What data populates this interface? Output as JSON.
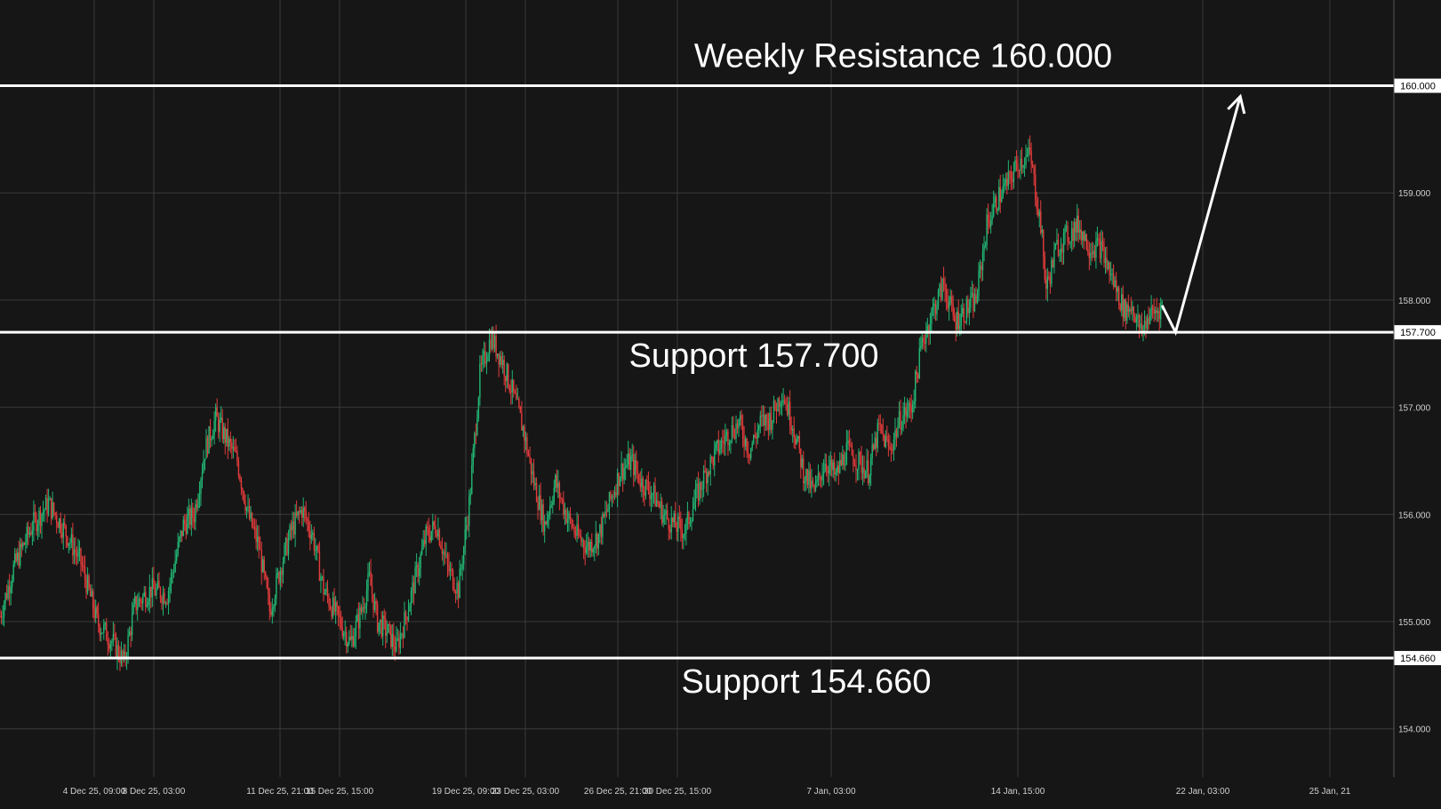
{
  "chart_data": {
    "type": "candlestick",
    "instrument": "",
    "y_ticks": [
      "154.000",
      "155.000",
      "156.000",
      "157.000",
      "158.000",
      "159.000"
    ],
    "y_tick_values": [
      154.0,
      155.0,
      156.0,
      157.0,
      158.0,
      159.0
    ],
    "ylim": [
      153.55,
      160.8
    ],
    "x_ticks": [
      {
        "label": "4 Dec 25, 09:00"
      },
      {
        "label": "8 Dec 25, 03:00"
      },
      {
        "label": "11 Dec 25, 21:00"
      },
      {
        "label": "15 Dec 25, 15:00"
      },
      {
        "label": "19 Dec 25, 09:00"
      },
      {
        "label": "23 Dec 25, 03:00"
      },
      {
        "label": "26 Dec 25, 21:00"
      },
      {
        "label": "30 Dec 25, 15:00"
      },
      {
        "label": "7 Jan, 03:00"
      },
      {
        "label": "14 Jan, 15:00"
      },
      {
        "label": "22 Jan, 03:00"
      },
      {
        "label": "25 Jan, 21"
      }
    ],
    "levels": [
      {
        "value": 160.0,
        "price_label": "160.000",
        "annotation": "Weekly Resistance 160.000",
        "annotation_position": "above"
      },
      {
        "value": 157.7,
        "price_label": "157.700",
        "annotation": "Support 157.700",
        "annotation_position": "below"
      },
      {
        "value": 154.66,
        "price_label": "154.660",
        "annotation": "Support 154.660",
        "annotation_position": "below"
      }
    ],
    "price_path": [
      [
        0,
        155.05
      ],
      [
        5,
        155.5
      ],
      [
        12,
        155.9
      ],
      [
        18,
        156.1
      ],
      [
        24,
        155.85
      ],
      [
        30,
        155.55
      ],
      [
        36,
        155.0
      ],
      [
        42,
        154.8
      ],
      [
        46,
        154.62
      ],
      [
        50,
        155.15
      ],
      [
        56,
        155.3
      ],
      [
        62,
        155.25
      ],
      [
        68,
        155.9
      ],
      [
        72,
        156.0
      ],
      [
        76,
        156.6
      ],
      [
        80,
        156.9
      ],
      [
        84,
        156.7
      ],
      [
        88,
        156.5
      ],
      [
        92,
        156.0
      ],
      [
        96,
        155.7
      ],
      [
        100,
        155.1
      ],
      [
        104,
        155.5
      ],
      [
        108,
        155.85
      ],
      [
        112,
        156.05
      ],
      [
        116,
        155.8
      ],
      [
        120,
        155.3
      ],
      [
        126,
        155.0
      ],
      [
        130,
        154.8
      ],
      [
        134,
        155.1
      ],
      [
        137,
        155.4
      ],
      [
        140,
        155.0
      ],
      [
        144,
        154.9
      ],
      [
        147,
        154.75
      ],
      [
        150,
        155.0
      ],
      [
        154,
        155.4
      ],
      [
        158,
        155.8
      ],
      [
        162,
        155.9
      ],
      [
        166,
        155.5
      ],
      [
        170,
        155.3
      ],
      [
        174,
        156.1
      ],
      [
        178,
        157.3
      ],
      [
        182,
        157.65
      ],
      [
        186,
        157.45
      ],
      [
        190,
        157.15
      ],
      [
        194,
        156.8
      ],
      [
        198,
        156.3
      ],
      [
        202,
        155.9
      ],
      [
        206,
        156.3
      ],
      [
        210,
        156.0
      ],
      [
        214,
        155.8
      ],
      [
        218,
        155.7
      ],
      [
        222,
        155.8
      ],
      [
        226,
        156.1
      ],
      [
        230,
        156.4
      ],
      [
        234,
        156.5
      ],
      [
        238,
        156.3
      ],
      [
        242,
        156.2
      ],
      [
        246,
        156.0
      ],
      [
        250,
        155.9
      ],
      [
        254,
        155.85
      ],
      [
        258,
        156.15
      ],
      [
        262,
        156.4
      ],
      [
        266,
        156.6
      ],
      [
        270,
        156.75
      ],
      [
        274,
        156.85
      ],
      [
        278,
        156.6
      ],
      [
        282,
        156.85
      ],
      [
        286,
        156.9
      ],
      [
        290,
        157.15
      ],
      [
        294,
        156.85
      ],
      [
        298,
        156.4
      ],
      [
        302,
        156.2
      ],
      [
        306,
        156.5
      ],
      [
        310,
        156.35
      ],
      [
        314,
        156.6
      ],
      [
        318,
        156.5
      ],
      [
        322,
        156.4
      ],
      [
        326,
        156.8
      ],
      [
        330,
        156.6
      ],
      [
        334,
        156.9
      ],
      [
        338,
        157.0
      ],
      [
        342,
        157.6
      ],
      [
        346,
        157.9
      ],
      [
        350,
        158.15
      ],
      [
        354,
        157.8
      ],
      [
        358,
        157.9
      ],
      [
        362,
        158.0
      ],
      [
        366,
        158.7
      ],
      [
        370,
        158.95
      ],
      [
        374,
        159.1
      ],
      [
        378,
        159.3
      ],
      [
        382,
        159.35
      ],
      [
        386,
        158.7
      ],
      [
        388,
        158.1
      ],
      [
        392,
        158.5
      ],
      [
        396,
        158.6
      ],
      [
        400,
        158.7
      ],
      [
        404,
        158.5
      ],
      [
        408,
        158.5
      ],
      [
        411,
        158.3
      ],
      [
        414,
        158.1
      ],
      [
        417,
        157.9
      ],
      [
        420,
        157.95
      ],
      [
        423,
        157.7
      ],
      [
        426,
        157.85
      ],
      [
        429,
        157.9
      ],
      [
        431,
        157.95
      ]
    ],
    "projection": [
      [
        431,
        157.95
      ],
      [
        436,
        157.7
      ],
      [
        460,
        159.9
      ]
    ],
    "x_range": [
      0,
      545
    ],
    "up_color": "#22b573",
    "down_color": "#e23b3b",
    "level_color": "#ffffff",
    "background": "#161616",
    "grid": true
  }
}
